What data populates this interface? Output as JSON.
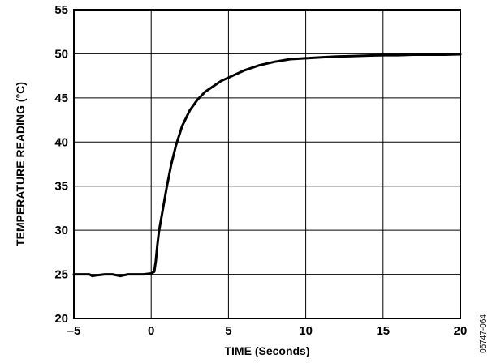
{
  "chart_data": {
    "type": "line",
    "xlabel": "TIME (Seconds)",
    "ylabel": "TEMPERATURE READING (°C)",
    "xlim": [
      -5,
      20
    ],
    "ylim": [
      20,
      55
    ],
    "xticks": [
      -5,
      0,
      5,
      10,
      15,
      20
    ],
    "yticks": [
      20,
      25,
      30,
      35,
      40,
      45,
      50,
      55
    ],
    "x_tick_labels": [
      "–5",
      "0",
      "5",
      "10",
      "15",
      "20"
    ],
    "y_tick_labels": [
      "20",
      "25",
      "30",
      "35",
      "40",
      "45",
      "50",
      "55"
    ],
    "grid": true,
    "figure_id": "05747-064",
    "colors": {
      "line": "#000000",
      "grid": "#000000",
      "background": "#ffffff"
    },
    "series": [
      {
        "x": [
          -5,
          -4,
          -3.8,
          -3.5,
          -3,
          -2.5,
          -2,
          -1.5,
          -1,
          -0.5,
          0,
          0.2,
          0.3,
          0.4,
          0.5,
          0.7,
          1,
          1.3,
          1.6,
          2,
          2.5,
          3,
          3.5,
          4,
          4.5,
          5,
          6,
          7,
          8,
          9,
          10,
          11,
          12,
          13,
          14,
          15,
          16,
          17,
          18,
          19,
          20
        ],
        "y": [
          25,
          25,
          24.8,
          24.9,
          25,
          25,
          24.8,
          25,
          25,
          25,
          25.1,
          25.3,
          26.5,
          28.3,
          29.8,
          31.8,
          34.8,
          37.5,
          39.6,
          41.8,
          43.6,
          44.8,
          45.7,
          46.3,
          46.9,
          47.3,
          48.1,
          48.7,
          49.1,
          49.4,
          49.5,
          49.6,
          49.7,
          49.75,
          49.8,
          49.85,
          49.85,
          49.9,
          49.9,
          49.9,
          49.95
        ]
      }
    ]
  }
}
